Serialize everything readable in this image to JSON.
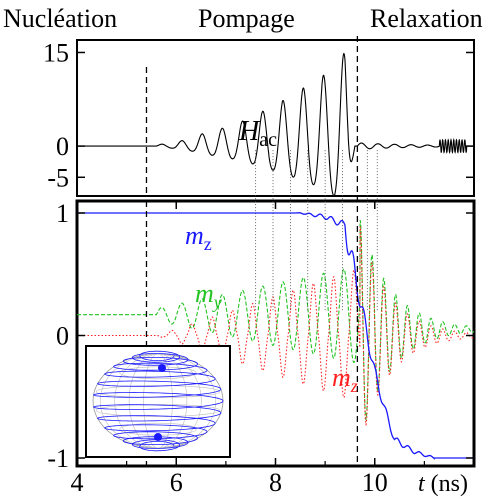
{
  "phases": [
    "Nucléation",
    "Pompage",
    "Relaxation"
  ],
  "colors": {
    "hac": "#000000",
    "mz_blue": "#1a1aff",
    "my_green": "#22c322",
    "mz_red": "#ff2020",
    "dashed_marker": "#000000",
    "dotted_link": "#444444"
  },
  "chart_data": [
    {
      "type": "line",
      "panel": "top",
      "series": [
        {
          "name": "H_ac",
          "label": "H",
          "subscript": "ac",
          "x": [
            4.0,
            5.4,
            5.8,
            6.2,
            6.6,
            7.0,
            7.4,
            7.8,
            8.2,
            8.6,
            9.0,
            9.2,
            9.4,
            9.6,
            9.7,
            10.0,
            10.5,
            11.0,
            11.6,
            11.8,
            12.0
          ],
          "y": [
            0,
            0,
            0.4,
            1.0,
            2.2,
            3.0,
            4.2,
            5.8,
            7.5,
            9.5,
            11.5,
            13.5,
            15.0,
            0,
            0,
            0.5,
            -0.5,
            0.4,
            1.0,
            0,
            0
          ]
        }
      ],
      "yticks": [
        "15",
        "0",
        "-5"
      ],
      "yticks_values": [
        15,
        0,
        -5
      ],
      "ylim": [
        -8,
        17
      ],
      "xlim": [
        4,
        12
      ]
    },
    {
      "type": "line",
      "panel": "bottom",
      "series": [
        {
          "name": "m_z (blue)",
          "label": "m",
          "subscript": "z",
          "x": [
            4.0,
            7.0,
            8.5,
            9.0,
            9.4,
            9.6,
            9.8,
            10.0,
            10.2,
            10.4,
            10.8,
            11.2,
            12.0
          ],
          "y": [
            1.0,
            1.0,
            1.0,
            0.97,
            0.9,
            0.5,
            0.1,
            -0.3,
            -0.6,
            -0.85,
            -0.95,
            -1.0,
            -1.0
          ]
        },
        {
          "name": "m_y (green)",
          "label": "m",
          "subscript": "y",
          "x": [
            4.0,
            5.5,
            7.0,
            8.0,
            9.0,
            9.5,
            9.8,
            10.0,
            10.5,
            11.0,
            12.0
          ],
          "y": [
            0.17,
            0.17,
            0.2,
            0.25,
            0.4,
            0.6,
            1.0,
            0.9,
            0.4,
            0.1,
            0.05
          ]
        },
        {
          "name": "m_z (red)",
          "label": "m",
          "subscript": "z",
          "x": [
            4.0,
            5.5,
            7.0,
            8.0,
            9.0,
            9.5,
            9.8,
            10.0,
            10.5,
            11.0,
            12.0
          ],
          "y": [
            0.0,
            0.0,
            -0.05,
            -0.15,
            -0.35,
            -0.6,
            -0.9,
            -0.7,
            -0.2,
            -0.05,
            0.0
          ]
        }
      ],
      "xticks": [
        "4",
        "6",
        "8",
        "10"
      ],
      "xticks_values": [
        4,
        6,
        8,
        10
      ],
      "yticks": [
        "1",
        "0",
        "-1"
      ],
      "yticks_values": [
        1,
        0,
        -1
      ],
      "xlabel": "t (ns)",
      "xlabel_italic": "t",
      "xlabel_unit": "(ns)",
      "ylim": [
        -1.05,
        1.05
      ],
      "xlim": [
        4,
        12
      ]
    }
  ],
  "markers": {
    "nucleation_end": 5.4,
    "pumping_end": 9.65
  }
}
